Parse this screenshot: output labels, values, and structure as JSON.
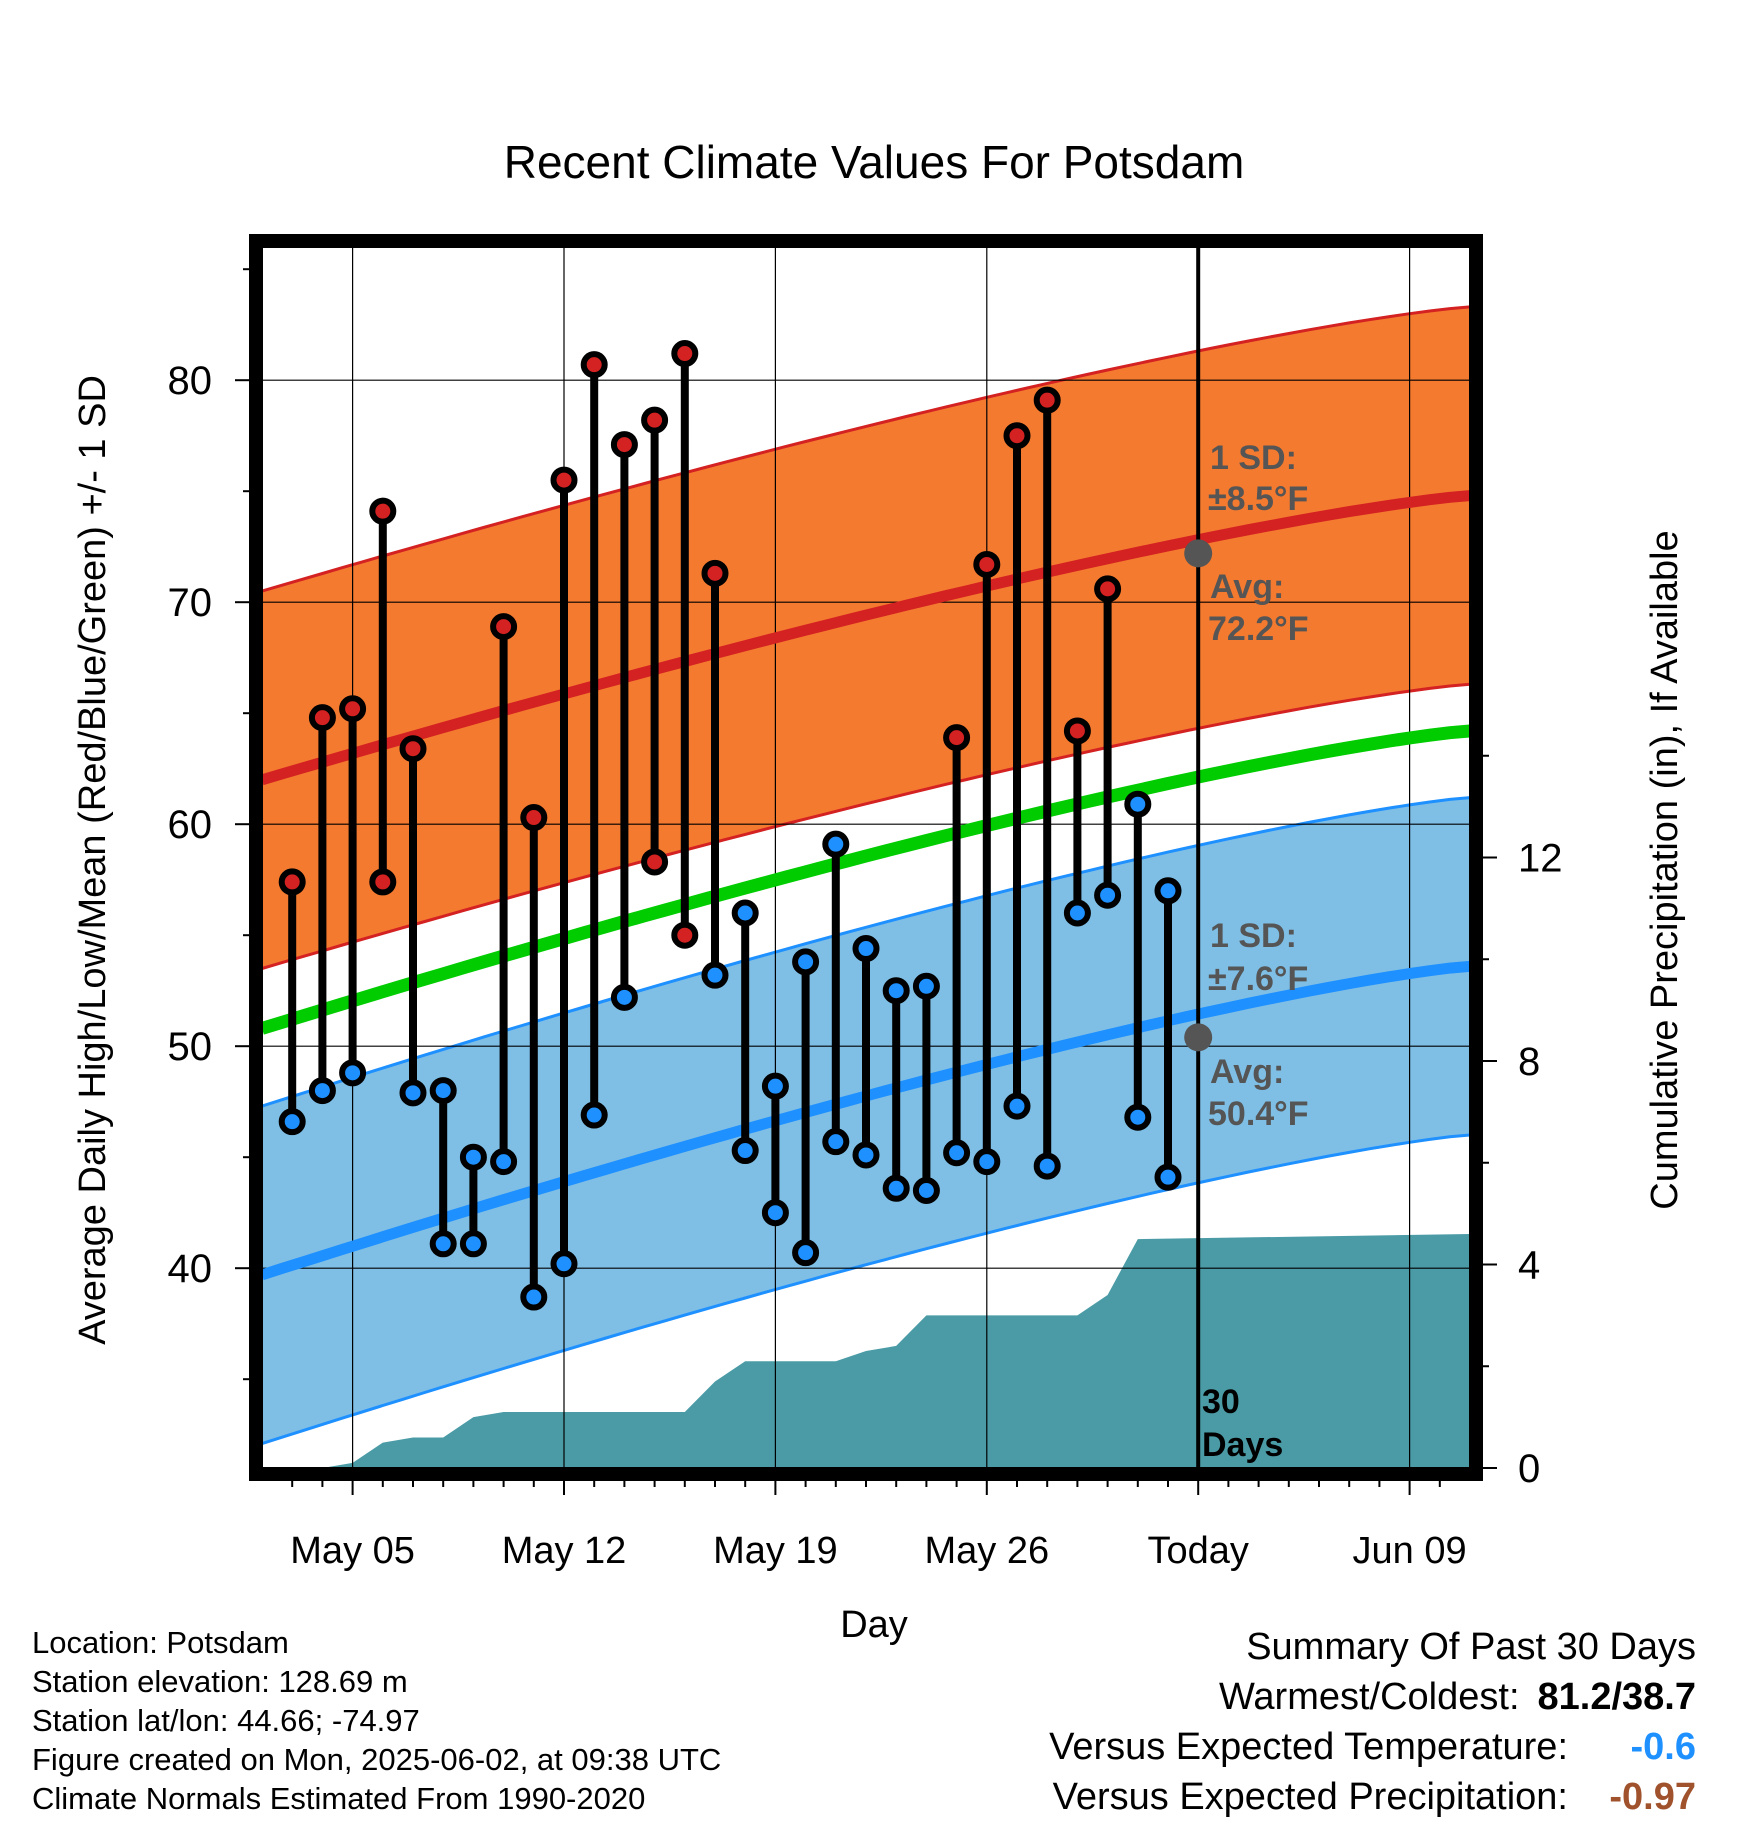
{
  "chart_data": {
    "type": "line",
    "title": "Recent Climate Values For Potsdam",
    "xlabel": "Day",
    "ylabel": "Average Daily High/Low/Mean (Red/Blue/Green) +/- 1 SD",
    "y2label": "Cumulative Precipitation (in), If Available",
    "x_tick_labels": [
      "May 05",
      "May 12",
      "May 19",
      "May 26",
      "Today",
      "Jun 09"
    ],
    "y_ticks": [
      "40",
      "50",
      "60",
      "70",
      "80"
    ],
    "y2_ticks": [
      "0",
      "4",
      "8",
      "12"
    ],
    "ylim": [
      31,
      86
    ],
    "y2lim": [
      0,
      24
    ],
    "x_range_days": [
      "2025-05-02",
      "2025-06-11"
    ],
    "today": "2025-06-02",
    "normals": {
      "high_avg_start": 62.0,
      "high_avg_end": 74.8,
      "high_sd": 8.5,
      "low_avg_start": 39.7,
      "low_avg_end": 53.6,
      "low_sd": 7.6,
      "mean_start": 50.8,
      "mean_end": 64.2,
      "colors": {
        "high_band": "#f47a30",
        "high_line": "#d42121",
        "low_band": "#7fbfe6",
        "low_line": "#1e90ff",
        "mean_line": "#00cc00",
        "precip": "#4a9ba6"
      }
    },
    "series": [
      {
        "name": "High",
        "dates": [
          "2025-05-03",
          "2025-05-04",
          "2025-05-05",
          "2025-05-06",
          "2025-05-07",
          "2025-05-08",
          "2025-05-09",
          "2025-05-10",
          "2025-05-11",
          "2025-05-12",
          "2025-05-13",
          "2025-05-14",
          "2025-05-15",
          "2025-05-16",
          "2025-05-17",
          "2025-05-18",
          "2025-05-19",
          "2025-05-20",
          "2025-05-21",
          "2025-05-22",
          "2025-05-23",
          "2025-05-24",
          "2025-05-25",
          "2025-05-26",
          "2025-05-27",
          "2025-05-28",
          "2025-05-29",
          "2025-05-30",
          "2025-05-31",
          "2025-06-01"
        ],
        "values": [
          57.4,
          64.8,
          65.2,
          74.1,
          63.4,
          48.0,
          45.0,
          68.9,
          60.3,
          75.5,
          80.7,
          77.1,
          78.2,
          81.2,
          71.3,
          56.0,
          48.2,
          53.8,
          59.1,
          54.4,
          52.5,
          52.7,
          63.9,
          71.7,
          77.5,
          79.1,
          64.2,
          70.6,
          60.9,
          57.0
        ]
      },
      {
        "name": "Low",
        "dates": [
          "2025-05-03",
          "2025-05-04",
          "2025-05-05",
          "2025-05-06",
          "2025-05-07",
          "2025-05-08",
          "2025-05-09",
          "2025-05-10",
          "2025-05-11",
          "2025-05-12",
          "2025-05-13",
          "2025-05-14",
          "2025-05-15",
          "2025-05-16",
          "2025-05-17",
          "2025-05-18",
          "2025-05-19",
          "2025-05-20",
          "2025-05-21",
          "2025-05-22",
          "2025-05-23",
          "2025-05-24",
          "2025-05-25",
          "2025-05-26",
          "2025-05-27",
          "2025-05-28",
          "2025-05-29",
          "2025-05-30",
          "2025-05-31",
          "2025-06-01"
        ],
        "values": [
          46.6,
          48.0,
          48.8,
          57.4,
          47.9,
          41.1,
          41.1,
          44.8,
          38.7,
          40.2,
          46.9,
          52.2,
          58.3,
          55.0,
          53.2,
          45.3,
          42.5,
          40.7,
          45.7,
          45.1,
          43.6,
          43.5,
          45.2,
          44.8,
          47.3,
          44.6,
          56.0,
          56.8,
          46.8,
          44.1
        ]
      },
      {
        "name": "Cumulative Precipitation",
        "dates": [
          "2025-05-04",
          "2025-05-05",
          "2025-05-06",
          "2025-05-07",
          "2025-05-08",
          "2025-05-09",
          "2025-05-10",
          "2025-05-11",
          "2025-05-16",
          "2025-05-17",
          "2025-05-18",
          "2025-05-21",
          "2025-05-22",
          "2025-05-23",
          "2025-05-24",
          "2025-05-29",
          "2025-05-30",
          "2025-05-31",
          "2025-06-11"
        ],
        "values": [
          0.0,
          0.1,
          0.5,
          0.6,
          0.6,
          1.0,
          1.1,
          1.1,
          1.1,
          1.7,
          2.1,
          2.1,
          2.3,
          2.4,
          3.0,
          3.0,
          3.4,
          4.5,
          4.6
        ]
      }
    ],
    "annotations": {
      "high_sd_label": "1 SD:",
      "high_sd_value": "±8.5°F",
      "high_avg_label": "Avg:",
      "high_avg_value": "72.2°F",
      "high_avg_today": 72.2,
      "low_sd_label": "1 SD:",
      "low_sd_value": "±7.6°F",
      "low_avg_label": "Avg:",
      "low_avg_value": "50.4°F",
      "low_avg_today": 50.4,
      "period_line1": "30",
      "period_line2": "Days"
    }
  },
  "info": {
    "location": "Location: Potsdam",
    "elevation": "Station elevation: 128.69 m",
    "latlon": "Station lat/lon: 44.66; -74.97",
    "created": "Figure created on Mon, 2025-06-02, at 09:38 UTC",
    "normals": "Climate Normals Estimated From 1990-2020"
  },
  "summary": {
    "heading": "Summary Of Past 30 Days",
    "warmest_label": "Warmest/Coldest:",
    "warmest_value": "81.2/38.7",
    "temp_label": "Versus Expected Temperature:",
    "temp_value": "-0.6",
    "temp_color": "#1e90ff",
    "precip_label": "Versus Expected Precipitation:",
    "precip_value": "-0.97",
    "precip_color": "#a0522d"
  }
}
